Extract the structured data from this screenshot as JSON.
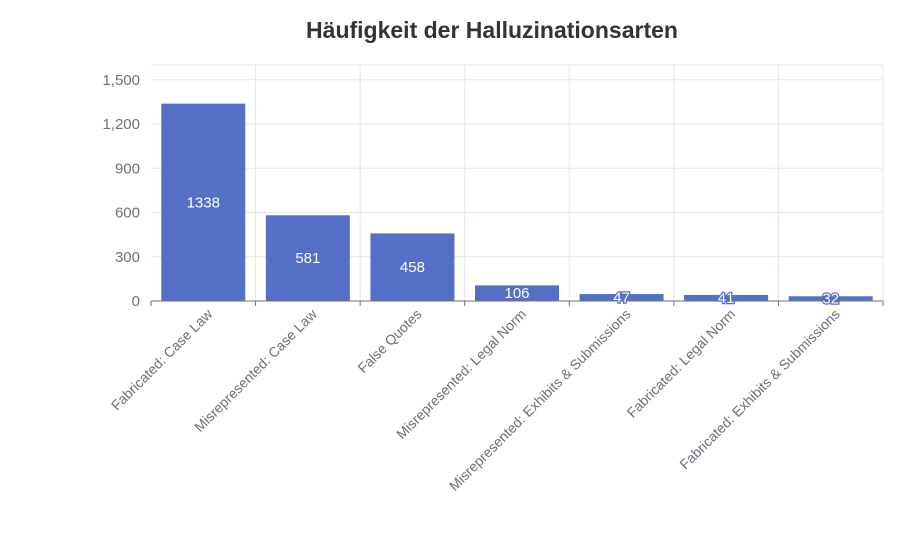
{
  "colors": {
    "bar": "#5470c6",
    "grid": "#e0e6f1",
    "axis": "#6e7079",
    "title": "#333333",
    "label": "#ffffff"
  },
  "chart_data": {
    "type": "bar",
    "title": "Häufigkeit der Halluzinationsarten",
    "xlabel": "",
    "ylabel": "",
    "categories": [
      "Fabricated: Case Law",
      "Misrepresented: Case Law",
      "False Quotes",
      "Misrepresented: Legal Norm",
      "Misrepresented: Exhibits & Submissions",
      "Fabricated: Legal Norm",
      "Fabricated: Exhibits & Submissions"
    ],
    "values": [
      1338,
      581,
      458,
      106,
      47,
      41,
      32
    ],
    "data_labels": [
      "1338",
      "581",
      "458",
      "106",
      "47",
      "41",
      "32"
    ],
    "ylim": [
      0,
      1600
    ],
    "yticks": [
      0,
      300,
      600,
      900,
      1200,
      1500
    ],
    "ytick_labels": [
      "0",
      "300",
      "600",
      "900",
      "1,200",
      "1,500"
    ],
    "grid": true,
    "legend": "none"
  }
}
